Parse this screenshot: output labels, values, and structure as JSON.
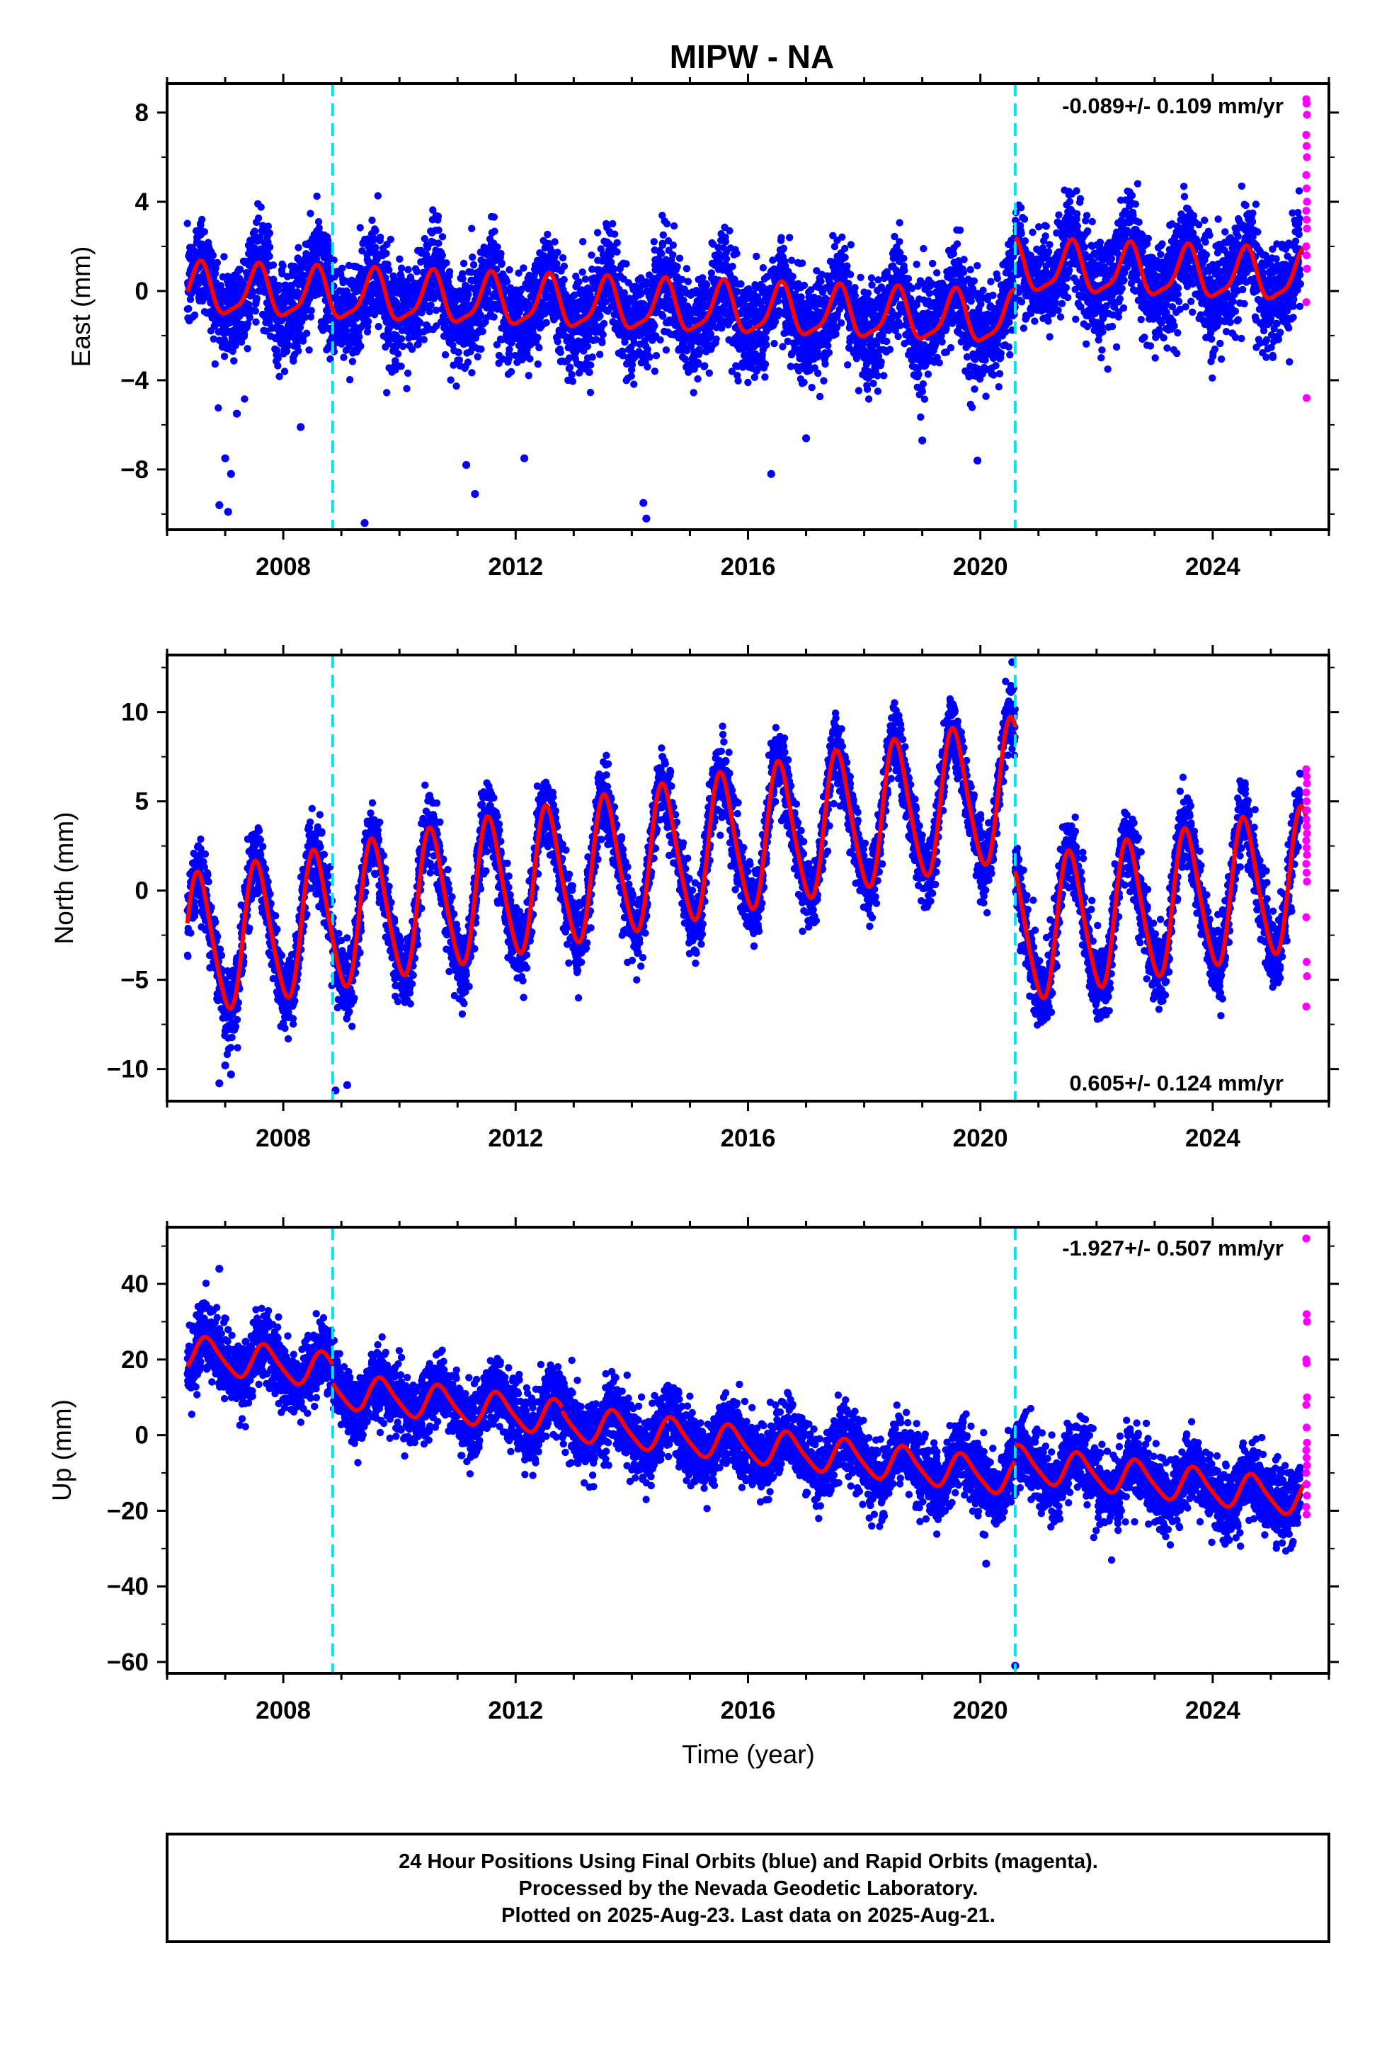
{
  "title": "MIPW - NA",
  "colors": {
    "final_orbits": "#0000ff",
    "rapid_orbits": "#ff00ff",
    "model_fit": "#ff0000",
    "offset_marker": "#00e5ee",
    "frame": "#000000"
  },
  "footer": {
    "line1": "24 Hour Positions Using Final Orbits (blue) and Rapid Orbits (magenta).",
    "line2": "Processed by the Nevada Geodetic Laboratory.",
    "line3": "Plotted on 2025-Aug-23. Last data on 2025-Aug-21."
  },
  "chart_data": [
    {
      "type": "scatter",
      "ylabel": "East (mm)",
      "xlabel": "",
      "rate_label": "-0.089+/- 0.109 mm/yr",
      "rate_position": "top-right",
      "xlim": [
        2006.0,
        2026.0
      ],
      "ylim": [
        -10.7,
        9.3
      ],
      "x_ticks": [
        2008,
        2012,
        2016,
        2020,
        2024
      ],
      "y_ticks": [
        -8,
        -4,
        0,
        4,
        8
      ],
      "y_tick_labels": [
        "−8",
        "−4",
        "0",
        "4",
        "8"
      ],
      "offset_lines_x": [
        2008.85,
        2020.6
      ],
      "data_start": 2006.35,
      "data_end": 2025.63,
      "model_segments": [
        {
          "t_start": 2006.35,
          "t_end": 2020.6,
          "a": 0.0,
          "b": -0.093,
          "annual_amp": 1.1,
          "annual_phase": 2006.56,
          "semiannual_amp": 0.3,
          "semiannual_phase": 2006.6
        },
        {
          "t_start": 2020.6,
          "t_end": 2025.63,
          "a": 2.35,
          "b": -0.093,
          "annual_amp": 1.1,
          "annual_phase": 2006.56,
          "semiannual_amp": 0.3,
          "semiannual_phase": 2006.6
        }
      ],
      "scatter_sd": 1.1,
      "rapid_values": [
        8.6,
        8.4,
        7.9,
        7.0,
        6.5,
        6.0,
        5.2,
        4.6,
        4.0,
        3.6,
        3.2,
        2.8,
        2.0,
        1.6,
        1.0,
        -0.5,
        -4.8
      ],
      "outliers": [
        [
          2006.9,
          -9.6
        ],
        [
          2007.05,
          -9.9
        ],
        [
          2007.0,
          -7.5
        ],
        [
          2007.1,
          -8.2
        ],
        [
          2007.2,
          -5.5
        ],
        [
          2008.3,
          -6.1
        ],
        [
          2009.4,
          -10.4
        ],
        [
          2011.3,
          -9.1
        ],
        [
          2011.15,
          -7.8
        ],
        [
          2012.15,
          -7.5
        ],
        [
          2014.2,
          -9.5
        ],
        [
          2014.25,
          -10.2
        ],
        [
          2016.4,
          -8.2
        ],
        [
          2017.0,
          -6.6
        ],
        [
          2019.0,
          -6.7
        ],
        [
          2019.95,
          -7.6
        ]
      ]
    },
    {
      "type": "scatter",
      "ylabel": "North (mm)",
      "xlabel": "",
      "rate_label": "0.605+/- 0.124 mm/yr",
      "rate_position": "bottom-right",
      "xlim": [
        2006.0,
        2026.0
      ],
      "ylim": [
        -11.8,
        13.2
      ],
      "x_ticks": [
        2008,
        2012,
        2016,
        2020,
        2024
      ],
      "y_ticks": [
        -10,
        -5,
        0,
        5,
        10
      ],
      "y_tick_labels": [
        "−10",
        "−5",
        "0",
        "5",
        "10"
      ],
      "offset_lines_x": [
        2008.85,
        2020.6
      ],
      "data_start": 2006.35,
      "data_end": 2025.63,
      "model_segments": [
        {
          "t_start": 2006.35,
          "t_end": 2020.6,
          "a": -3.2,
          "b": 0.62,
          "annual_amp": 3.9,
          "annual_phase": 2006.55,
          "semiannual_amp": 0.5,
          "semiannual_phase": 2006.45
        },
        {
          "t_start": 2020.6,
          "t_end": 2025.63,
          "a": -11.3,
          "b": 0.62,
          "annual_amp": 3.9,
          "annual_phase": 2006.55,
          "semiannual_amp": 0.5,
          "semiannual_phase": 2006.45
        }
      ],
      "scatter_sd": 1.0,
      "rapid_values": [
        6.8,
        6.4,
        6.0,
        5.5,
        5.0,
        4.5,
        4.0,
        3.6,
        3.2,
        2.8,
        2.4,
        2.0,
        1.5,
        1.0,
        0.5,
        -1.5,
        -4.0,
        -4.8,
        -6.5
      ],
      "outliers": [
        [
          2006.9,
          -10.8
        ],
        [
          2007.0,
          -9.8
        ],
        [
          2007.1,
          -10.3
        ],
        [
          2008.9,
          -11.2
        ],
        [
          2009.1,
          -10.9
        ],
        [
          2020.55,
          12.8
        ]
      ]
    },
    {
      "type": "scatter",
      "ylabel": "Up (mm)",
      "xlabel": "Time (year)",
      "rate_label": "-1.927+/- 0.507 mm/yr",
      "rate_position": "top-right",
      "xlim": [
        2006.0,
        2026.0
      ],
      "ylim": [
        -63,
        55
      ],
      "x_ticks": [
        2008,
        2012,
        2016,
        2020,
        2024
      ],
      "y_ticks": [
        -60,
        -40,
        -20,
        0,
        20,
        40
      ],
      "y_tick_labels": [
        "−60",
        "−40",
        "−20",
        "0",
        "20",
        "40"
      ],
      "offset_lines_x": [
        2008.85,
        2020.6
      ],
      "data_start": 2006.35,
      "data_end": 2025.63,
      "model_segments": [
        {
          "t_start": 2006.35,
          "t_end": 2008.85,
          "a": 21.6,
          "b": -1.9,
          "annual_amp": 4.5,
          "annual_phase": 2006.7,
          "semiannual_amp": 0.8,
          "semiannual_phase": 2006.6
        },
        {
          "t_start": 2008.85,
          "t_end": 2012.8,
          "a": 16.6,
          "b": -1.9,
          "annual_amp": 4.5,
          "annual_phase": 2006.7,
          "semiannual_amp": 0.8,
          "semiannual_phase": 2006.6
        },
        {
          "t_start": 2012.8,
          "t_end": 2020.6,
          "a": 15.6,
          "b": -1.9,
          "annual_amp": 4.5,
          "annual_phase": 2006.7,
          "semiannual_amp": 0.8,
          "semiannual_phase": 2006.6
        },
        {
          "t_start": 2020.6,
          "t_end": 2025.63,
          "a": 19.6,
          "b": -1.9,
          "annual_amp": 4.5,
          "annual_phase": 2006.7,
          "semiannual_amp": 0.8,
          "semiannual_phase": 2006.6
        }
      ],
      "scatter_sd": 4.5,
      "rapid_values": [
        52,
        32,
        30,
        20,
        19,
        10,
        8,
        2,
        -2,
        -4,
        -6,
        -8,
        -10,
        -13,
        -16,
        -19,
        -21
      ],
      "outliers": [
        [
          2006.9,
          44
        ],
        [
          2020.1,
          -34
        ],
        [
          2020.6,
          -61
        ]
      ]
    }
  ]
}
